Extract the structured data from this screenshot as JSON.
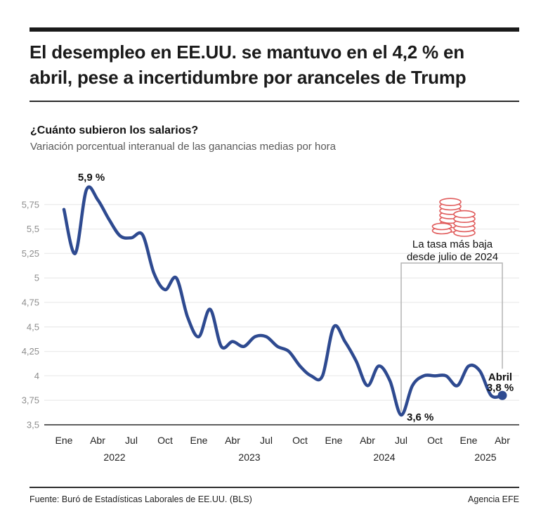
{
  "header": {
    "title_lines": [
      "El desempleo en EE.UU. se mantuvo en el 4,2 % en",
      "abril, pese a incertidumbre por aranceles de Trump"
    ]
  },
  "section": {
    "heading": "¿Cuánto subieron los salarios?",
    "subtitle": "Variación porcentual interanual de las ganancias medias por hora"
  },
  "chart_data": {
    "type": "line",
    "title": "¿Cuánto subieron los salarios?",
    "subtitle": "Variación porcentual interanual de las ganancias medias por hora",
    "unit": "%",
    "ylim": [
      3.5,
      5.95
    ],
    "grid": true,
    "legend": "none",
    "y_ticks": [
      {
        "value": 5.75,
        "label": "5,75"
      },
      {
        "value": 5.5,
        "label": "5,5"
      },
      {
        "value": 5.25,
        "label": "5,25"
      },
      {
        "value": 5.0,
        "label": "5"
      },
      {
        "value": 4.75,
        "label": "4,75"
      },
      {
        "value": 4.5,
        "label": "4,5"
      },
      {
        "value": 4.25,
        "label": "4,25"
      },
      {
        "value": 4.0,
        "label": "4"
      },
      {
        "value": 3.75,
        "label": "3,75"
      },
      {
        "value": 3.5,
        "label": "3,5"
      }
    ],
    "series": [
      {
        "name": "Ganancias medias por hora, variación interanual (%)",
        "years": [
          {
            "year": "2022",
            "values": [
              5.7,
              5.25,
              5.9,
              5.8,
              5.6,
              5.43,
              5.41,
              5.44,
              5.05,
              4.88,
              5.0,
              4.6
            ]
          },
          {
            "year": "2023",
            "values": [
              4.4,
              4.68,
              4.3,
              4.35,
              4.3,
              4.4,
              4.4,
              4.3,
              4.25,
              4.1,
              4.0,
              4.0
            ]
          },
          {
            "year": "2024",
            "values": [
              4.5,
              4.35,
              4.15,
              3.9,
              4.1,
              3.95,
              3.6,
              3.9,
              4.0,
              4.0,
              4.0,
              3.9
            ]
          },
          {
            "year": "2025",
            "values": [
              4.1,
              4.05,
              3.8,
              3.8
            ]
          }
        ]
      }
    ],
    "x_ticks": [
      {
        "index": 0,
        "label": "Ene"
      },
      {
        "index": 3,
        "label": "Abr"
      },
      {
        "index": 6,
        "label": "Jul"
      },
      {
        "index": 9,
        "label": "Oct"
      },
      {
        "index": 12,
        "label": "Ene"
      },
      {
        "index": 15,
        "label": "Abr"
      },
      {
        "index": 18,
        "label": "Jul"
      },
      {
        "index": 21,
        "label": "Oct"
      },
      {
        "index": 24,
        "label": "Ene"
      },
      {
        "index": 27,
        "label": "Abr"
      },
      {
        "index": 30,
        "label": "Jul"
      },
      {
        "index": 33,
        "label": "Oct"
      },
      {
        "index": 36,
        "label": "Ene"
      },
      {
        "index": 39,
        "label": "Abr"
      }
    ],
    "year_ticks": [
      {
        "label": "2022",
        "from_index": 0,
        "to_index": 9
      },
      {
        "label": "2023",
        "from_index": 12,
        "to_index": 21
      },
      {
        "label": "2024",
        "from_index": 24,
        "to_index": 33
      },
      {
        "label": "2025",
        "from_index": 36,
        "to_index": 39
      }
    ],
    "annotations": {
      "peak": {
        "index": 2,
        "label": "5,9 %"
      },
      "trough": {
        "index": 30,
        "label": "3,6 %"
      },
      "endpoint": {
        "index": 39,
        "label_lines": [
          "Abril",
          "3,8 %"
        ]
      },
      "note": {
        "lines": [
          "La tasa más baja",
          "desde julio de 2024"
        ],
        "icon": "coins-icon"
      },
      "bracket": {
        "from_index": 30,
        "to_index": 39
      }
    },
    "colors": {
      "line": "#2e4a90",
      "endpoint_dot": "#2e4a90",
      "coins_icon": "#e05a5a",
      "grid": "#ececec",
      "axis": "#5f5f5f",
      "bracket": "#b3b3b3",
      "y_tick_text": "#8d8d8d",
      "x_tick_text": "#1f1f1f",
      "annotation_text": "#111111"
    }
  },
  "footer": {
    "source": "Fuente: Buró de Estadísticas Laborales de EE.UU. (BLS)",
    "credit": "Agencia EFE"
  }
}
